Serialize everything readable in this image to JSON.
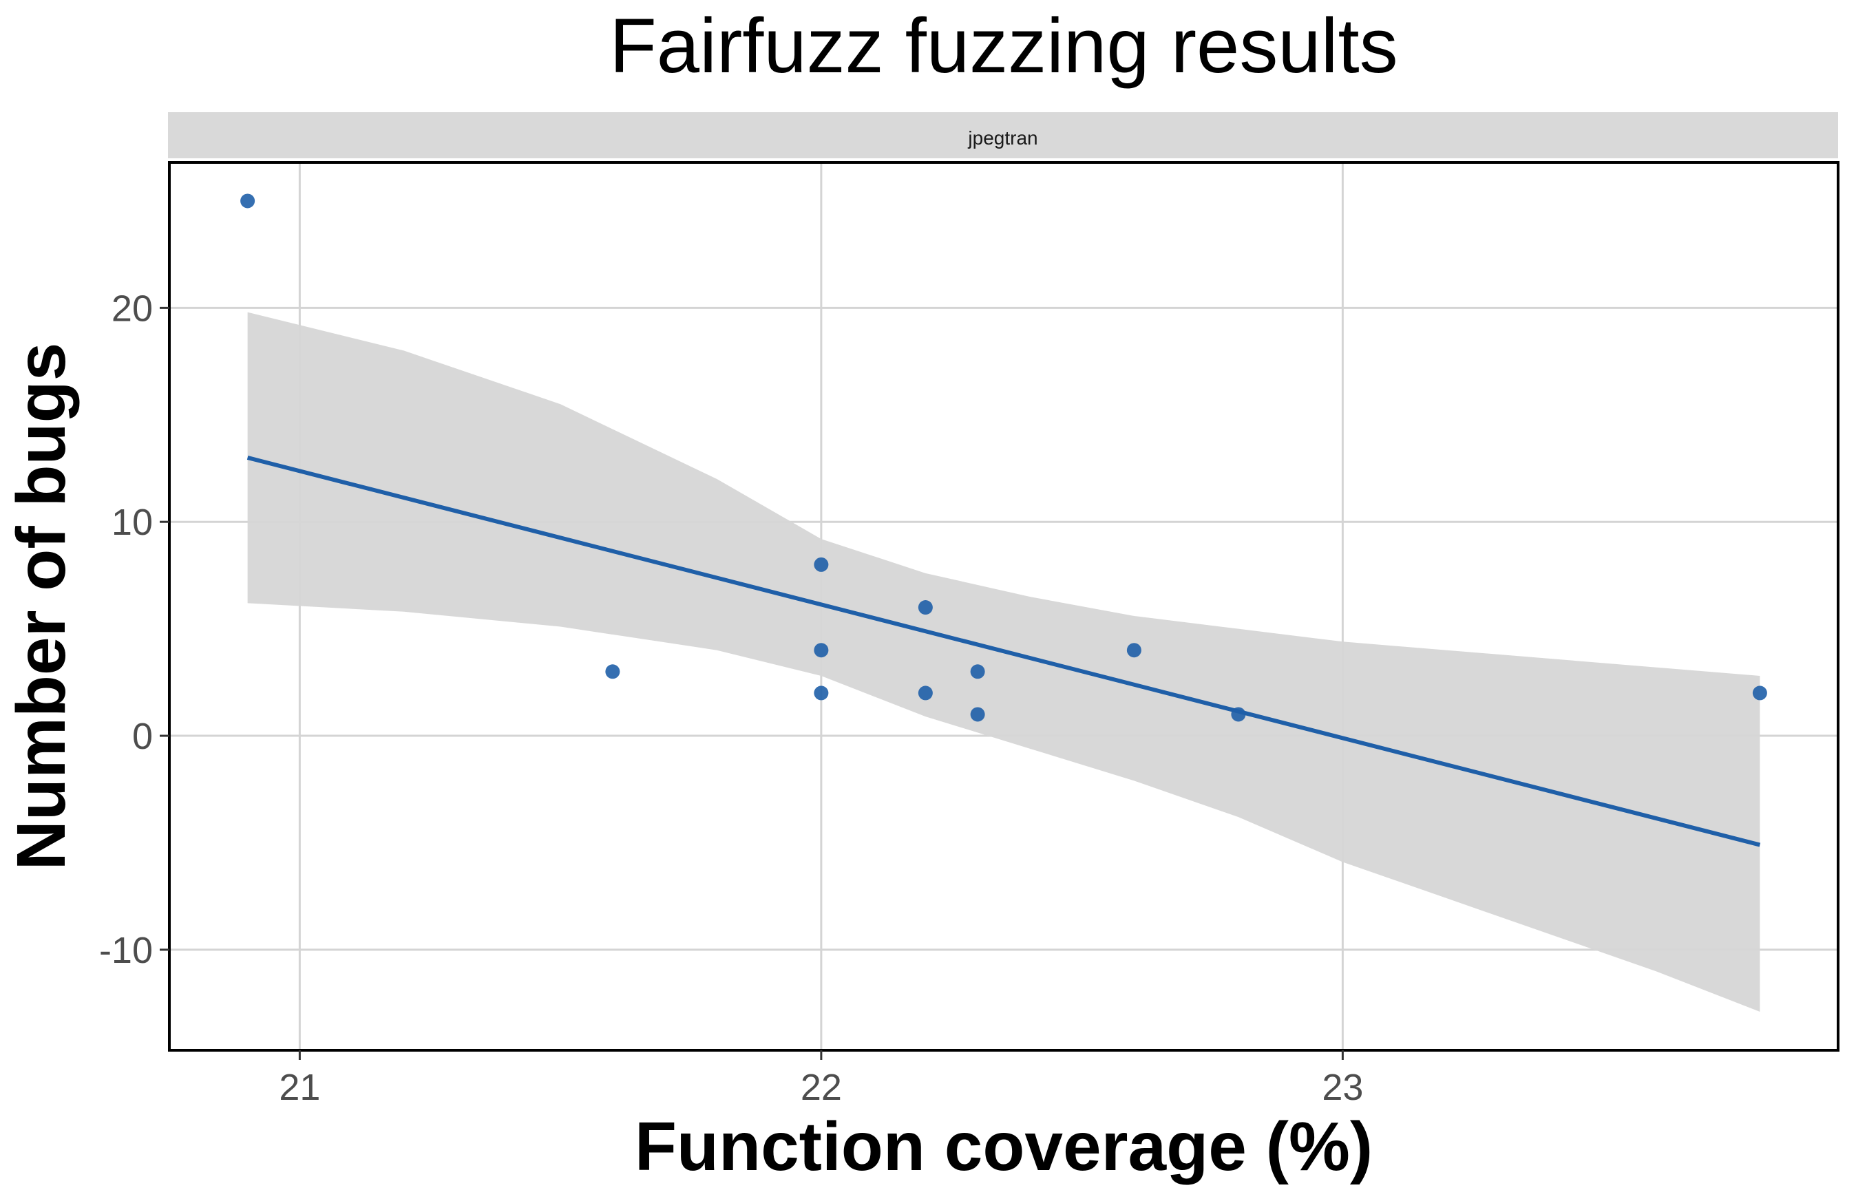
{
  "chart_data": {
    "type": "scatter",
    "title": "Fairfuzz fuzzing results",
    "facet_label": "jpegtran",
    "xlabel": "Function coverage (%)",
    "ylabel": "Number of bugs",
    "xlim": [
      20.75,
      23.95
    ],
    "ylim": [
      -14.7,
      26.8
    ],
    "x_ticks": [
      21,
      22,
      23
    ],
    "x_tick_labels": [
      "21",
      "22",
      "23"
    ],
    "y_ticks": [
      -10,
      0,
      10,
      20
    ],
    "y_tick_labels": [
      "-10",
      "0",
      "10",
      "20"
    ],
    "grid": true,
    "points_color": "#1f5fa8",
    "line_color": "#1f5fa8",
    "ribbon_color": "#d6d6d6",
    "points": [
      {
        "x": 20.9,
        "y": 25
      },
      {
        "x": 21.6,
        "y": 3
      },
      {
        "x": 22.0,
        "y": 8
      },
      {
        "x": 22.0,
        "y": 4
      },
      {
        "x": 22.0,
        "y": 2
      },
      {
        "x": 22.2,
        "y": 6
      },
      {
        "x": 22.2,
        "y": 2
      },
      {
        "x": 22.3,
        "y": 3
      },
      {
        "x": 22.3,
        "y": 1
      },
      {
        "x": 22.6,
        "y": 4
      },
      {
        "x": 22.8,
        "y": 1
      },
      {
        "x": 23.8,
        "y": 2
      }
    ],
    "fit_line": {
      "x": [
        20.9,
        23.8
      ],
      "y": [
        13.0,
        -5.1
      ]
    },
    "confidence_band": {
      "x": [
        20.9,
        21.2,
        21.5,
        21.8,
        22.0,
        22.2,
        22.4,
        22.6,
        22.8,
        23.0,
        23.2,
        23.4,
        23.6,
        23.8
      ],
      "upper": [
        19.8,
        18.0,
        15.5,
        12.0,
        9.2,
        7.6,
        6.5,
        5.6,
        5.0,
        4.4,
        4.0,
        3.6,
        3.2,
        2.8
      ],
      "lower": [
        6.2,
        5.8,
        5.1,
        4.0,
        2.8,
        0.9,
        -0.6,
        -2.1,
        -3.8,
        -5.9,
        -7.6,
        -9.3,
        -11.0,
        -12.9
      ]
    }
  }
}
